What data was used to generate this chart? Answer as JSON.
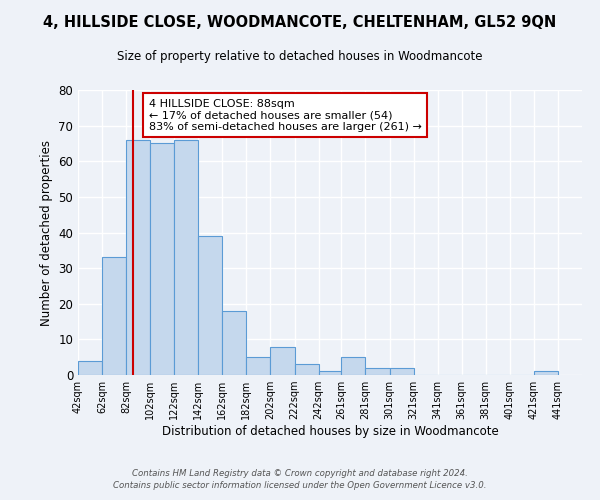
{
  "title": "4, HILLSIDE CLOSE, WOODMANCOTE, CHELTENHAM, GL52 9QN",
  "subtitle": "Size of property relative to detached houses in Woodmancote",
  "xlabel": "Distribution of detached houses by size in Woodmancote",
  "ylabel": "Number of detached properties",
  "bin_edges": [
    42,
    62,
    82,
    102,
    122,
    142,
    162,
    182,
    202,
    222,
    242,
    261,
    281,
    301,
    321,
    341,
    361,
    381,
    401,
    421,
    441
  ],
  "bin_labels": [
    "42sqm",
    "62sqm",
    "82sqm",
    "102sqm",
    "122sqm",
    "142sqm",
    "162sqm",
    "182sqm",
    "202sqm",
    "222sqm",
    "242sqm",
    "261sqm",
    "281sqm",
    "301sqm",
    "321sqm",
    "341sqm",
    "361sqm",
    "381sqm",
    "401sqm",
    "421sqm",
    "441sqm"
  ],
  "counts": [
    4,
    33,
    66,
    65,
    66,
    39,
    18,
    5,
    8,
    3,
    1,
    5,
    2,
    2,
    0,
    0,
    0,
    0,
    0,
    1
  ],
  "bar_color": "#c5d8ed",
  "bar_edge_color": "#5b9bd5",
  "property_line_x": 88,
  "property_line_color": "#cc0000",
  "annotation_text": "4 HILLSIDE CLOSE: 88sqm\n← 17% of detached houses are smaller (54)\n83% of semi-detached houses are larger (261) →",
  "annotation_box_color": "#ffffff",
  "annotation_box_edge": "#cc0000",
  "ylim": [
    0,
    80
  ],
  "yticks": [
    0,
    10,
    20,
    30,
    40,
    50,
    60,
    70,
    80
  ],
  "background_color": "#eef2f8",
  "grid_color": "#ffffff",
  "footer_line1": "Contains HM Land Registry data © Crown copyright and database right 2024.",
  "footer_line2": "Contains public sector information licensed under the Open Government Licence v3.0."
}
